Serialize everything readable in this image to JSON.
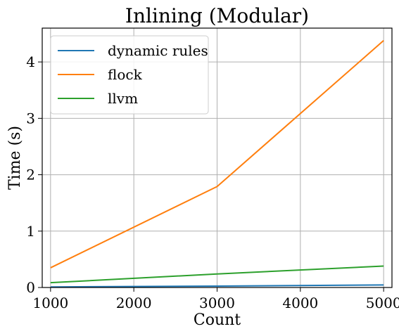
{
  "chart_data": {
    "type": "line",
    "title": "Inlining (Modular)",
    "xlabel": "Count",
    "ylabel": "Time (s)",
    "x": [
      1000,
      3000,
      5000
    ],
    "xlim": [
      900,
      5100
    ],
    "ylim": [
      0,
      4.6
    ],
    "xticks": [
      1000,
      2000,
      3000,
      4000,
      5000
    ],
    "yticks": [
      0,
      1,
      2,
      3,
      4
    ],
    "grid": true,
    "legend_position": "top-left",
    "series": [
      {
        "name": "dynamic rules",
        "color": "#1f77b4",
        "values": [
          0.01,
          0.025,
          0.045
        ]
      },
      {
        "name": "flock",
        "color": "#ff7f0e",
        "values": [
          0.35,
          1.79,
          4.38
        ]
      },
      {
        "name": "llvm",
        "color": "#2ca02c",
        "values": [
          0.085,
          0.24,
          0.38
        ]
      }
    ]
  }
}
